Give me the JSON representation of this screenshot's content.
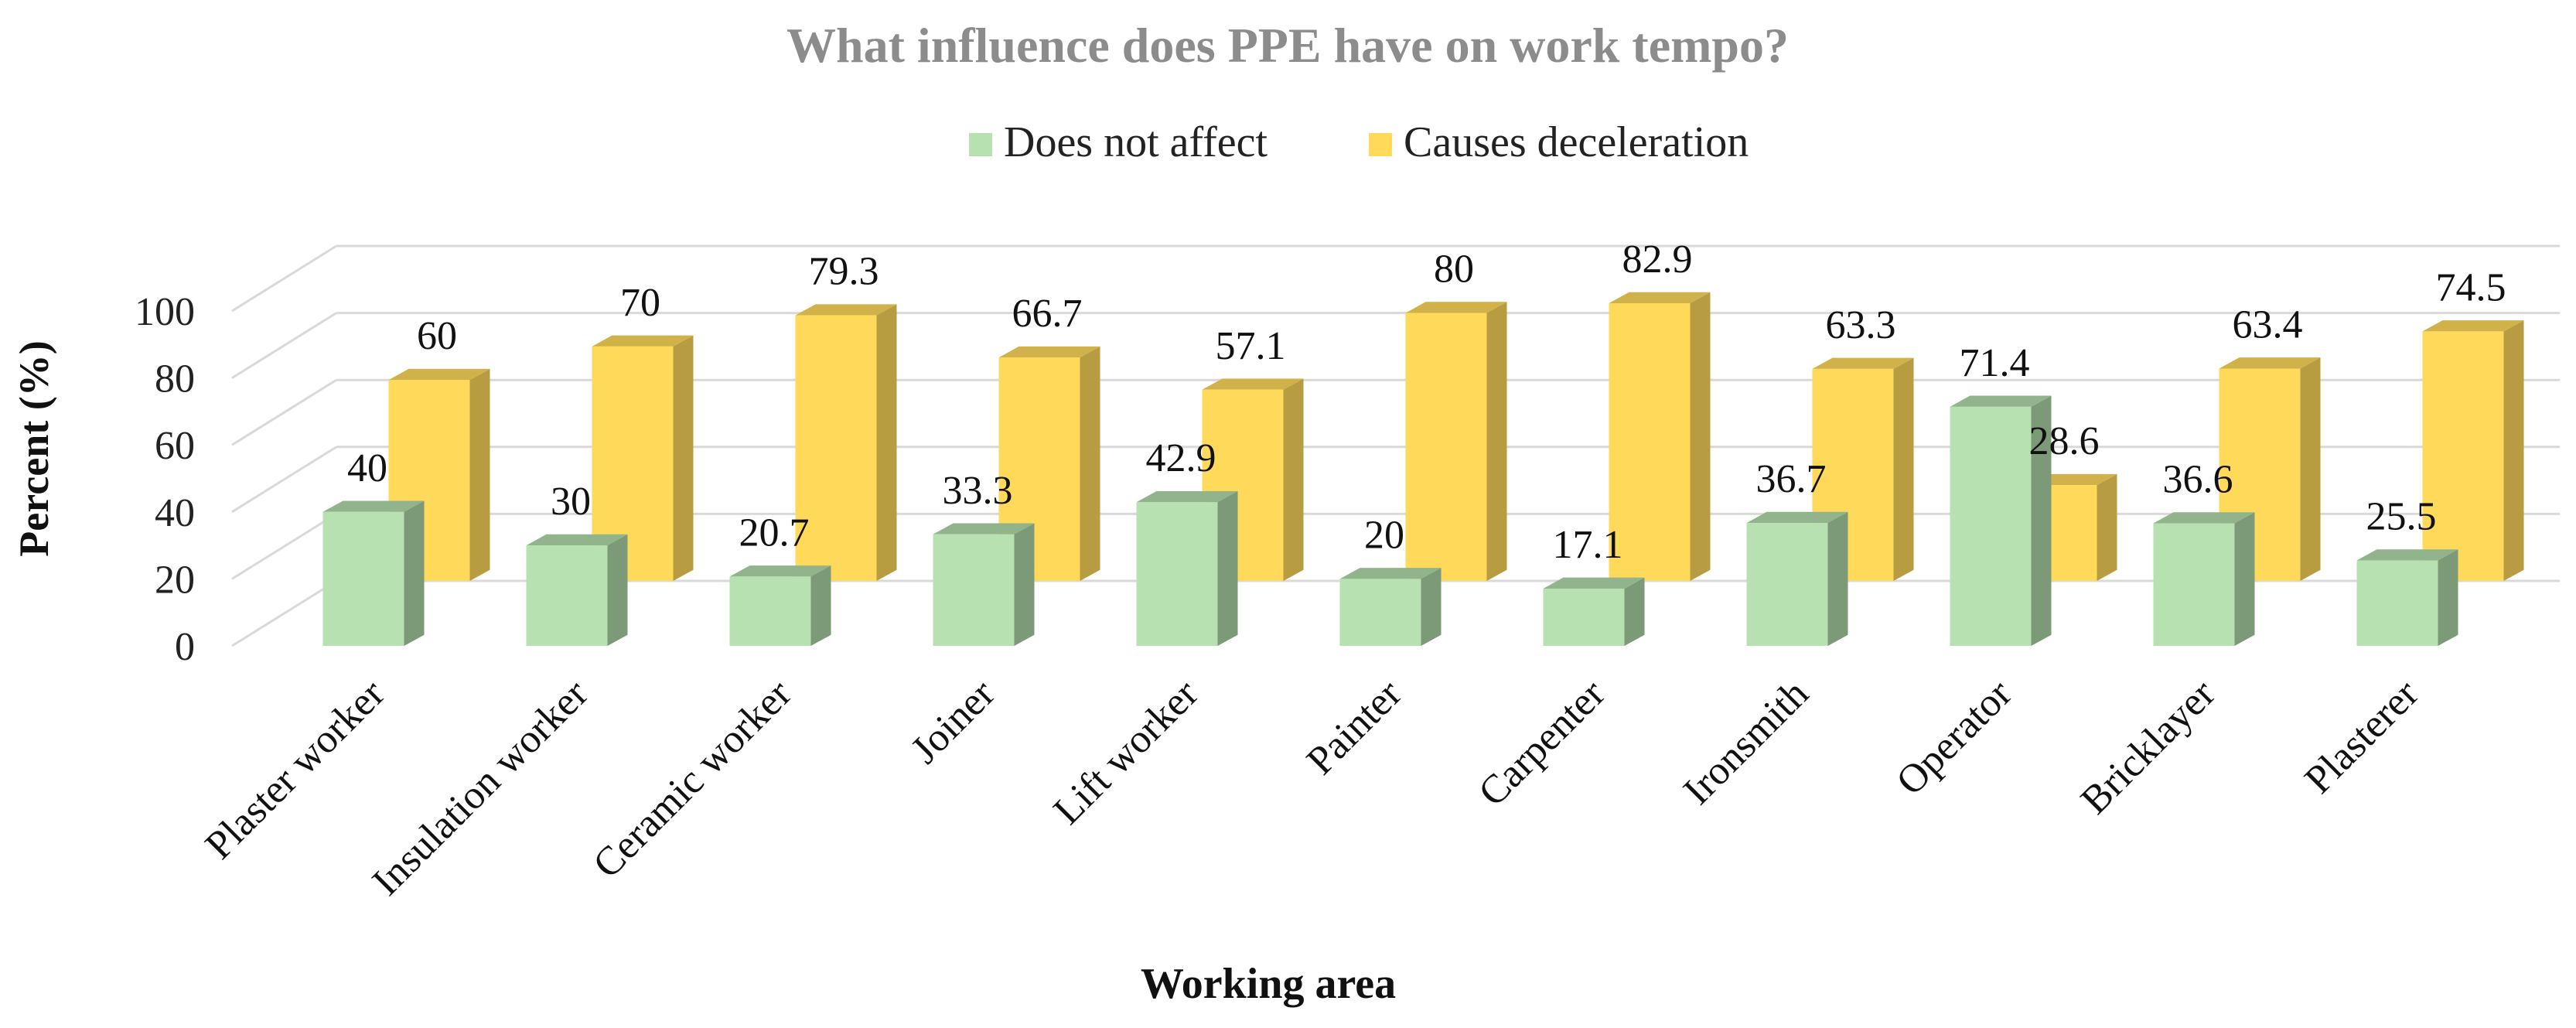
{
  "chart_data": {
    "type": "bar",
    "title": "What influence does PPE have on work tempo?",
    "xlabel": "Working area",
    "ylabel": "Percent (%)",
    "ylim": [
      0,
      100
    ],
    "yticks": [
      "0",
      "20",
      "40",
      "60",
      "80",
      "100"
    ],
    "grid": true,
    "legend_position": "top",
    "categories": [
      "Plaster worker",
      "Insulation worker",
      "Ceramic worker",
      "Joiner",
      "Lift worker",
      "Painter",
      "Carpenter",
      "Ironsmith",
      "Operator",
      "Bricklayer",
      "Plasterer"
    ],
    "series": [
      {
        "name": "Does not affect",
        "color": "#b7e1b0",
        "values": [
          40,
          30,
          20.7,
          33.3,
          42.9,
          20,
          17.1,
          36.7,
          71.4,
          36.6,
          25.5
        ],
        "labels": [
          "40",
          "30",
          "20.7",
          "33.3",
          "42.9",
          "20",
          "17.1",
          "36.7",
          "71.4",
          "36.6",
          "25.5"
        ]
      },
      {
        "name": "Causes deceleration",
        "color": "#ffd95a",
        "values": [
          60,
          70,
          79.3,
          66.7,
          57.1,
          80,
          82.9,
          63.3,
          28.6,
          63.4,
          74.5
        ],
        "labels": [
          "60",
          "70",
          "79.3",
          "66.7",
          "57.1",
          "80",
          "82.9",
          "63.3",
          "28.6",
          "63.4",
          "74.5"
        ]
      }
    ]
  }
}
